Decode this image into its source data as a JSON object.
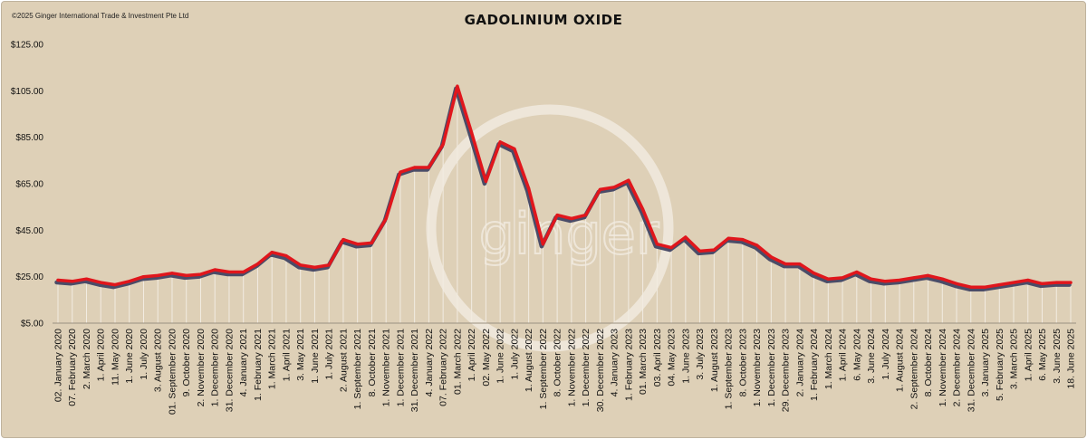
{
  "header": {
    "copyright": "©2025 Ginger International Trade & Investment Pte Ltd",
    "title": "GADOLINIUM OXIDE"
  },
  "watermark": {
    "text": "ginger"
  },
  "colors": {
    "background": "#ded0b7",
    "line": "#e0161c",
    "shadow": "#4a4c68",
    "drop_line": "#f2ece2",
    "watermark": "#eee6d9"
  },
  "chart_data": {
    "type": "line",
    "title": "GADOLINIUM OXIDE",
    "xlabel": "",
    "ylabel": "",
    "ylim": [
      5,
      125
    ],
    "y_ticks": [
      "$5.00",
      "$25.00",
      "$45.00",
      "$65.00",
      "$85.00",
      "$105.00",
      "$125.00"
    ],
    "grid": false,
    "legend": "none",
    "x_labels": [
      "02. January 2020",
      "07. February 2020",
      "2. March 2020",
      "1. April 2020",
      "11. May 2020",
      "1. June 2020",
      "1. July 2020",
      "3. August 2020",
      "01. September 2020",
      "9. October 2020",
      "2. November 2020",
      "1. December 2020",
      "31. December 2020",
      "4. January 2021",
      "1. February 2021",
      "1. March 2021",
      "1. April 2021",
      "3. May 2021",
      "1. June 2021",
      "1. July 2021",
      "2. August 2021",
      "1. September 2021",
      "8. October 2021",
      "1. November 2021",
      "1. December 2021",
      "31. December 2021",
      "4. January 2022",
      "07. February 2022",
      "01. March 2022",
      "1. April 2022",
      "02. May 2022",
      "1. June 2022",
      "1. July 2022",
      "1. August 2022",
      "1. September 2022",
      "8. October 2022",
      "1. November 2022",
      "1. December 2022",
      "30. December 2022",
      "4. January 2023",
      "1. February 2023",
      "01. March 2023",
      "03. April 2023",
      "04. May 2023",
      "1. June 2023",
      "3. July 2023",
      "1. August 2023",
      "1. September 2023",
      "8. October 2023",
      "1. November 2023",
      "1. December 2023",
      "29. December 2023",
      "2. January 2024",
      "1. February 2024",
      "1. March 2024",
      "1. April 2024",
      "6. May 2024",
      "3. June 2024",
      "1. July 2024",
      "1. August 2024",
      "2. September 2024",
      "8. October 2024",
      "1. November 2024",
      "2. December 2024",
      "31. December 2024",
      "3. January 2025",
      "5. February 2025",
      "3. March 2025",
      "1. April 2025",
      "6. May 2025",
      "3. June 2025",
      "18. June 2025"
    ],
    "series": [
      {
        "values": [
          23.5,
          23,
          24,
          22.5,
          21.5,
          23,
          25,
          25.5,
          26.5,
          25.5,
          26,
          28,
          27,
          27,
          30.5,
          35.5,
          34,
          30,
          29,
          30,
          41,
          39,
          39.5,
          50,
          70,
          72,
          72,
          82,
          107,
          87,
          66,
          83,
          80,
          63,
          39,
          51.5,
          50,
          51.5,
          62.5,
          63.5,
          66.5,
          54,
          39,
          37.5,
          42,
          36,
          36.5,
          41.5,
          41,
          38.5,
          33.5,
          30.5,
          30.5,
          26.5,
          24,
          24.5,
          27,
          24,
          23,
          23.5,
          24.5,
          25.5,
          24,
          22,
          20.5,
          20.5,
          21.5,
          22.5,
          23.5,
          22,
          22.5,
          22.5
        ]
      }
    ]
  }
}
